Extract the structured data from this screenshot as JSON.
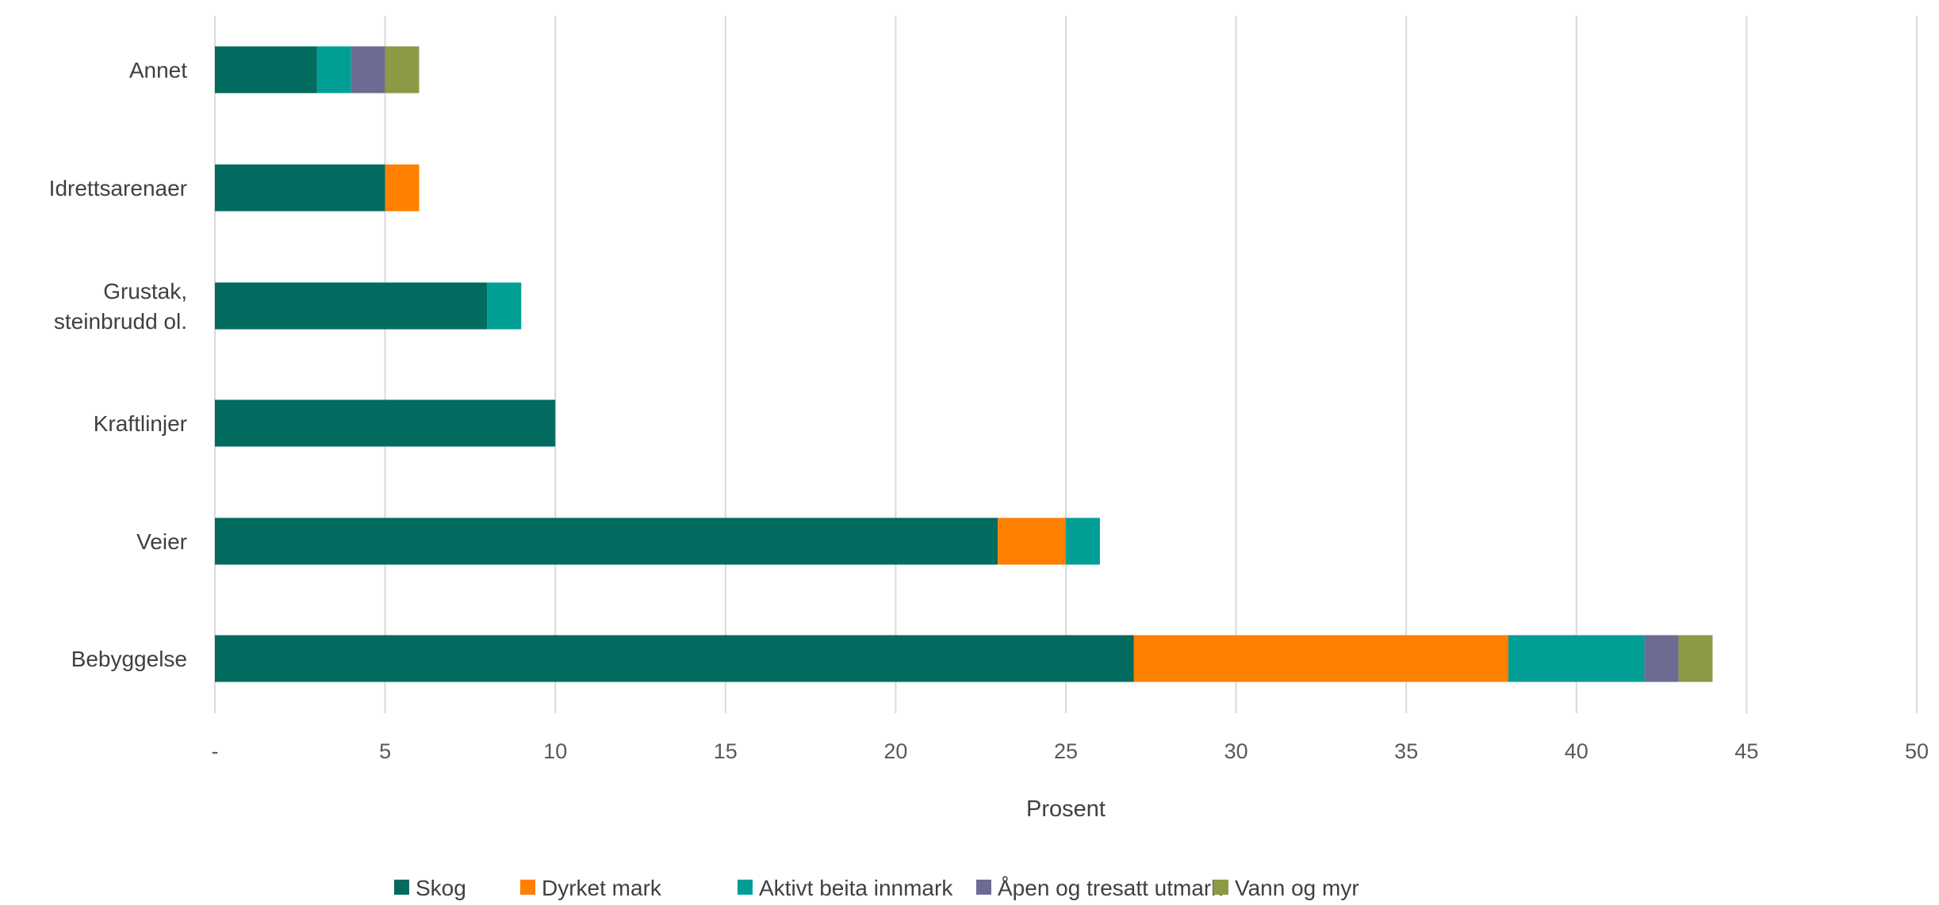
{
  "chart_data": {
    "type": "bar",
    "orientation": "horizontal",
    "stacked": true,
    "categories": [
      "Annet",
      "Idrettsarenaer",
      "Grustak, steinbrudd ol.",
      "Kraftlinjer",
      "Veier",
      "Bebyggelse"
    ],
    "category_lines": [
      [
        "Annet"
      ],
      [
        "Idrettsarenaer"
      ],
      [
        "Grustak,",
        "steinbrudd ol."
      ],
      [
        "Kraftlinjer"
      ],
      [
        "Veier"
      ],
      [
        "Bebyggelse"
      ]
    ],
    "series": [
      {
        "name": "Skog",
        "color": "#006b5e",
        "values": [
          3,
          5,
          8,
          10,
          23,
          27
        ]
      },
      {
        "name": "Dyrket mark",
        "color": "#ff7f00",
        "values": [
          0,
          1,
          0,
          0,
          2,
          11
        ]
      },
      {
        "name": "Aktivt beita innmark",
        "color": "#009e94",
        "values": [
          1,
          0,
          1,
          0,
          1,
          4
        ]
      },
      {
        "name": "Åpen og tresatt utmark",
        "color": "#6e6b92",
        "values": [
          1,
          0,
          0,
          0,
          0,
          1
        ]
      },
      {
        "name": "Vann og myr",
        "color": "#8a9a45",
        "values": [
          1,
          0,
          0,
          0,
          0,
          1
        ]
      }
    ],
    "x_ticks": [
      0,
      5,
      10,
      15,
      20,
      25,
      30,
      35,
      40,
      45,
      50
    ],
    "x_tick_labels": [
      "-",
      "5",
      "10",
      "15",
      "20",
      "25",
      "30",
      "35",
      "40",
      "45",
      "50"
    ],
    "xlim": [
      0,
      50
    ],
    "xlabel": "Prosent",
    "ylabel": "",
    "title": "",
    "grid": "vertical",
    "legend_position": "bottom"
  }
}
